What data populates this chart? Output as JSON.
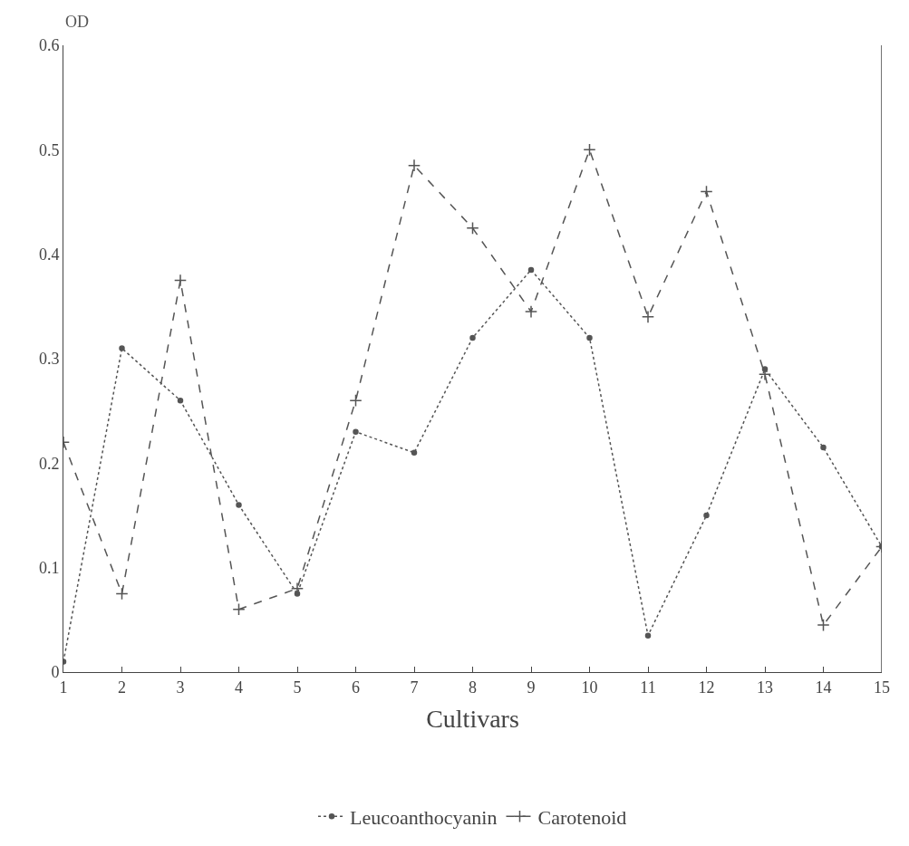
{
  "chart_data": {
    "type": "line",
    "xlabel": "Cultivars",
    "ylabel": "OD",
    "x": [
      1,
      2,
      3,
      4,
      5,
      6,
      7,
      8,
      9,
      10,
      11,
      12,
      13,
      14,
      15
    ],
    "xlim": [
      1,
      15
    ],
    "xticks": [
      1,
      2,
      3,
      4,
      5,
      6,
      7,
      8,
      9,
      10,
      11,
      12,
      13,
      14,
      15
    ],
    "ylim": [
      0,
      0.6
    ],
    "yticks": [
      0,
      0.1,
      0.2,
      0.3,
      0.4,
      0.5,
      0.6
    ],
    "grid": false,
    "legend": "bottom",
    "series": [
      {
        "name": "Leucoanthocyanin",
        "color": "#555555",
        "marker": "circle",
        "line_style": "dotted",
        "values": [
          0.01,
          0.31,
          0.26,
          0.16,
          0.075,
          0.23,
          0.21,
          0.32,
          0.385,
          0.32,
          0.035,
          0.15,
          0.29,
          0.215,
          0.12
        ]
      },
      {
        "name": "Carotenoid",
        "color": "#555555",
        "marker": "cross",
        "line_style": "dashed",
        "values": [
          0.22,
          0.075,
          0.375,
          0.06,
          0.08,
          0.26,
          0.485,
          0.425,
          0.345,
          0.5,
          0.34,
          0.46,
          0.285,
          0.045,
          0.12
        ]
      }
    ]
  }
}
